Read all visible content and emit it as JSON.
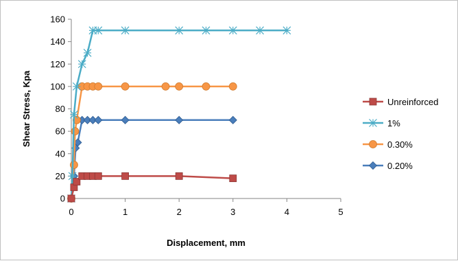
{
  "chart_data": {
    "type": "line",
    "title": "",
    "xlabel": "Displacement, mm",
    "ylabel": "Shear Stress, Kpa",
    "xlim": [
      0,
      5
    ],
    "ylim": [
      0,
      160
    ],
    "xticks": [
      0,
      1,
      2,
      3,
      4,
      5
    ],
    "yticks": [
      0,
      20,
      40,
      60,
      80,
      100,
      120,
      140,
      160
    ],
    "grid": false,
    "legend_position": "right",
    "series": [
      {
        "name": "Unreinforced",
        "color": "#be4b48",
        "marker": "square",
        "points": [
          [
            0,
            0
          ],
          [
            0.05,
            10
          ],
          [
            0.1,
            15
          ],
          [
            0.2,
            20
          ],
          [
            0.3,
            20
          ],
          [
            0.4,
            20
          ],
          [
            0.5,
            20
          ],
          [
            1,
            20
          ],
          [
            2,
            20
          ],
          [
            3,
            18
          ]
        ]
      },
      {
        "name": "1%",
        "color": "#4bacc6",
        "marker": "asterisk",
        "points": [
          [
            0,
            0
          ],
          [
            0.02,
            20
          ],
          [
            0.05,
            75
          ],
          [
            0.1,
            100
          ],
          [
            0.2,
            120
          ],
          [
            0.3,
            130
          ],
          [
            0.4,
            150
          ],
          [
            0.5,
            150
          ],
          [
            1,
            150
          ],
          [
            2,
            150
          ],
          [
            2.5,
            150
          ],
          [
            3,
            150
          ],
          [
            3.5,
            150
          ],
          [
            4,
            150
          ]
        ]
      },
      {
        "name": "0.30%",
        "color": "#f79646",
        "marker": "circle",
        "points": [
          [
            0,
            0
          ],
          [
            0.05,
            30
          ],
          [
            0.07,
            60
          ],
          [
            0.1,
            70
          ],
          [
            0.2,
            100
          ],
          [
            0.3,
            100
          ],
          [
            0.4,
            100
          ],
          [
            0.5,
            100
          ],
          [
            1,
            100
          ],
          [
            1.75,
            100
          ],
          [
            2,
            100
          ],
          [
            2.5,
            100
          ],
          [
            3,
            100
          ]
        ]
      },
      {
        "name": "0.20%",
        "color": "#4a7ebb",
        "marker": "diamond",
        "points": [
          [
            0,
            0
          ],
          [
            0.05,
            20
          ],
          [
            0.08,
            45
          ],
          [
            0.12,
            50
          ],
          [
            0.2,
            70
          ],
          [
            0.3,
            70
          ],
          [
            0.4,
            70
          ],
          [
            0.5,
            70
          ],
          [
            1,
            70
          ],
          [
            2,
            70
          ],
          [
            3,
            70
          ]
        ]
      }
    ]
  }
}
